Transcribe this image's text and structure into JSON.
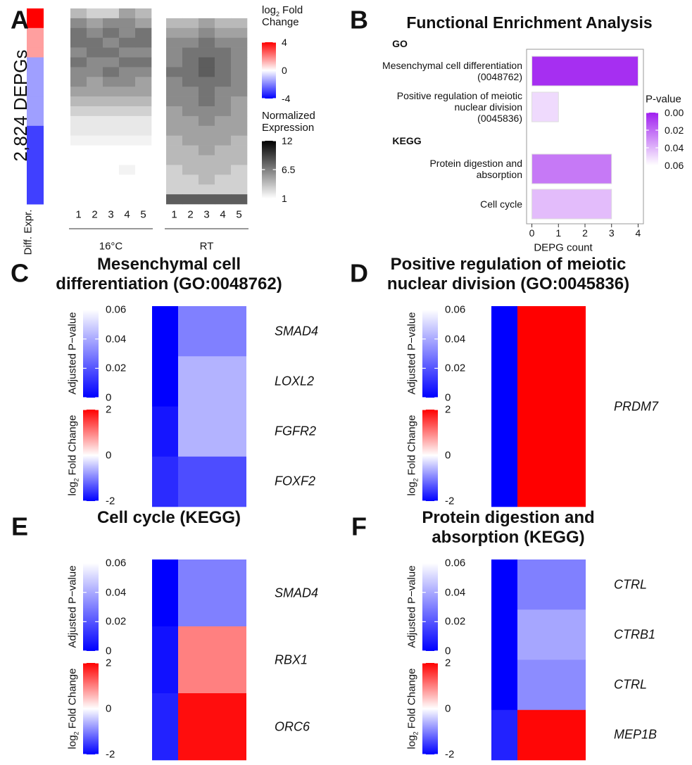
{
  "chart_data": [
    {
      "type": "heatmap",
      "panel": "A",
      "row_label": "2,824 DEPGs",
      "sidebar_label": "Diff. Expr.",
      "diff_expr": [
        4,
        4,
        1.5,
        1.5,
        1.5,
        -1.5,
        -1.5,
        -1.5,
        -1.5,
        -1.5,
        -1.5,
        -1.5,
        -3,
        -3,
        -3,
        -3,
        -3,
        -3,
        -3,
        -3
      ],
      "groups": [
        {
          "name": "16°C",
          "columns": [
            "1",
            "2",
            "3",
            "4",
            "5"
          ],
          "values": [
            [
              4,
              3,
              3,
              5,
              4
            ],
            [
              6,
              5,
              6,
              6,
              5
            ],
            [
              7,
              6,
              7,
              6,
              7
            ],
            [
              7,
              7,
              6,
              7,
              7
            ],
            [
              6,
              7,
              7,
              6,
              6
            ],
            [
              7,
              6,
              6,
              7,
              7
            ],
            [
              6,
              6,
              7,
              6,
              6
            ],
            [
              6,
              5,
              6,
              6,
              5
            ],
            [
              5,
              5,
              5,
              5,
              5
            ],
            [
              4,
              4,
              4,
              4,
              4
            ],
            [
              3,
              3,
              3,
              3,
              3
            ],
            [
              2,
              2,
              2,
              2,
              2
            ],
            [
              2,
              2,
              2,
              2,
              2
            ],
            [
              1.5,
              1.5,
              1.5,
              1.5,
              1.5
            ],
            [
              1,
              1,
              1,
              1,
              1
            ],
            [
              1,
              1,
              1,
              1,
              1
            ],
            [
              1,
              1,
              1,
              1.5,
              1
            ],
            [
              1,
              1,
              1,
              1,
              1
            ],
            [
              1,
              1,
              1,
              1,
              1
            ],
            [
              1,
              1,
              1,
              1,
              1
            ]
          ]
        },
        {
          "name": "RT",
          "columns": [
            "1",
            "2",
            "3",
            "4",
            "5"
          ],
          "values": [
            [
              1,
              1,
              1,
              1,
              1
            ],
            [
              4,
              4,
              5,
              4,
              4
            ],
            [
              5,
              5,
              6,
              5,
              5
            ],
            [
              6,
              6,
              7,
              6,
              6
            ],
            [
              6,
              7,
              7,
              7,
              6
            ],
            [
              6,
              7,
              8,
              7,
              6
            ],
            [
              7,
              7,
              8,
              7,
              6
            ],
            [
              6,
              7,
              7,
              7,
              6
            ],
            [
              6,
              6,
              7,
              6,
              6
            ],
            [
              6,
              6,
              7,
              6,
              5
            ],
            [
              5,
              6,
              6,
              6,
              5
            ],
            [
              5,
              5,
              6,
              5,
              5
            ],
            [
              5,
              5,
              5,
              5,
              5
            ],
            [
              4,
              5,
              5,
              5,
              4
            ],
            [
              4,
              4,
              5,
              4,
              4
            ],
            [
              4,
              4,
              4,
              4,
              4
            ],
            [
              3,
              4,
              4,
              4,
              3
            ],
            [
              3,
              3,
              4,
              3,
              3
            ],
            [
              3,
              3,
              3,
              3,
              3
            ],
            [
              8,
              8,
              8,
              8,
              8
            ]
          ]
        }
      ],
      "fc_legend": {
        "title": {
          "base": "log",
          "subscript": "2",
          "text": "Fold Change"
        },
        "lim": [
          -4,
          4
        ],
        "ticks": [
          4,
          0,
          -4
        ],
        "colors": [
          "#0000ff",
          "#ffffff",
          "#ff0000"
        ]
      },
      "expr_legend": {
        "title": "Normalized Expression",
        "lim": [
          1,
          12
        ],
        "ticks": [
          12,
          6.5,
          1
        ],
        "colors": [
          "#ffffff",
          "#000000"
        ]
      }
    },
    {
      "type": "bar",
      "panel": "B",
      "title": "Functional Enrichment Analysis",
      "orientation": "horizontal",
      "group_labels": [
        "GO",
        "KEGG"
      ],
      "categories": [
        "Mesenchymal cell differentiation\n(0048762)",
        "Positive regulation of meiotic\nnuclear division\n(0045836)",
        "Protein digestion and\nabsorption",
        "Cell cycle"
      ],
      "values": [
        4,
        1,
        3,
        3
      ],
      "p_values": [
        0.004,
        0.05,
        0.024,
        0.042
      ],
      "xlabel": "DEPG count",
      "xlim": [
        -0.2,
        4.2
      ],
      "xticks": [
        0,
        1,
        2,
        3,
        4
      ],
      "legend_title": "P-value",
      "color_lim": [
        0,
        0.06
      ],
      "colors": [
        "#a020f0",
        "#ffffff"
      ],
      "color_ticks": [
        {
          "value": 0,
          "label": "0.00"
        },
        0.02,
        0.04,
        0.06
      ]
    },
    {
      "type": "heatmap",
      "panel": "C",
      "title": "Mesenchymal cell\ndifferentiation (GO:0048762)",
      "genes": [
        "SMAD4",
        "LOXL2",
        "FGFR2",
        "FOXF2"
      ],
      "padj": [
        0,
        0,
        0.005,
        0.01
      ],
      "log2fc": [
        -1.0,
        -0.6,
        -0.6,
        -1.4
      ],
      "padj_legend": {
        "title": "Adjusted P−value",
        "lim": [
          0,
          0.06
        ],
        "ticks": [
          0.06,
          0.04,
          0.02,
          0
        ],
        "colors": [
          "#0000ff",
          "#ffffff"
        ]
      },
      "fc_legend": {
        "title": {
          "base": "log",
          "subscript": "2",
          "text": "Fold Change"
        },
        "lim": [
          -2,
          2
        ],
        "ticks": [
          2,
          0,
          -2
        ],
        "colors": [
          "#0000ff",
          "#ffffff",
          "#ff0000"
        ]
      }
    },
    {
      "type": "heatmap",
      "panel": "D",
      "title": "Positive regulation of meiotic\nnuclear division (GO:0045836)",
      "genes": [
        "PRDM7"
      ],
      "padj": [
        0
      ],
      "log2fc": [
        2.0
      ],
      "padj_legend": {
        "title": "Adjusted P−value",
        "lim": [
          0,
          0.06
        ],
        "ticks": [
          0.06,
          0.04,
          0.02,
          0
        ],
        "colors": [
          "#0000ff",
          "#ffffff"
        ]
      },
      "fc_legend": {
        "title": {
          "base": "log",
          "subscript": "2",
          "text": "Fold Change"
        },
        "lim": [
          -2,
          2
        ],
        "ticks": [
          2,
          0,
          -2
        ],
        "colors": [
          "#0000ff",
          "#ffffff",
          "#ff0000"
        ]
      }
    },
    {
      "type": "heatmap",
      "panel": "E",
      "title": "Cell cycle (KEGG)",
      "genes": [
        "SMAD4",
        "RBX1",
        "ORC6"
      ],
      "padj": [
        0,
        0.004,
        0.008
      ],
      "log2fc": [
        -1.0,
        1.0,
        1.9
      ],
      "padj_legend": {
        "title": "Adjusted P−value",
        "lim": [
          0,
          0.06
        ],
        "ticks": [
          0.06,
          0.04,
          0.02,
          0
        ],
        "colors": [
          "#0000ff",
          "#ffffff"
        ]
      },
      "fc_legend": {
        "title": {
          "base": "log",
          "subscript": "2",
          "text": "Fold Change"
        },
        "lim": [
          -2,
          2
        ],
        "ticks": [
          2,
          0,
          -2
        ],
        "colors": [
          "#0000ff",
          "#ffffff",
          "#ff0000"
        ]
      }
    },
    {
      "type": "heatmap",
      "panel": "F",
      "title": "Protein digestion and\nabsorption (KEGG)",
      "genes": [
        "CTRL",
        "CTRB1",
        "CTRL",
        "MEP1B"
      ],
      "padj": [
        0,
        0,
        0,
        0.008
      ],
      "log2fc": [
        -1.0,
        -0.7,
        -0.9,
        1.95
      ],
      "padj_legend": {
        "title": "Adjusted P−value",
        "lim": [
          0,
          0.06
        ],
        "ticks": [
          0.06,
          0.04,
          0.02,
          0
        ],
        "colors": [
          "#0000ff",
          "#ffffff"
        ]
      },
      "fc_legend": {
        "title": {
          "base": "log",
          "subscript": "2",
          "text": "Fold Change"
        },
        "lim": [
          -2,
          2
        ],
        "ticks": [
          2,
          0,
          -2
        ],
        "colors": [
          "#0000ff",
          "#ffffff",
          "#ff0000"
        ]
      }
    }
  ]
}
